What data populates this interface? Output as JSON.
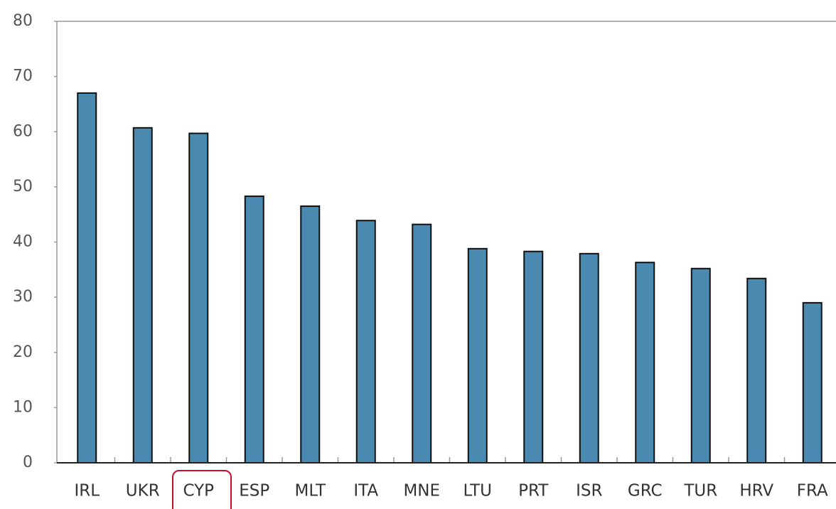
{
  "chart_data": {
    "type": "bar",
    "categories": [
      "IRL",
      "UKR",
      "CYP",
      "ESP",
      "MLT",
      "ITA",
      "MNE",
      "LTU",
      "PRT",
      "ISR",
      "GRC",
      "TUR",
      "HRV",
      "FRA"
    ],
    "values": [
      67.0,
      60.7,
      59.7,
      48.3,
      46.5,
      43.9,
      43.2,
      38.8,
      38.3,
      37.9,
      36.3,
      35.2,
      33.4,
      29.0
    ],
    "color": "#4a8ab0",
    "ylim": [
      0,
      80
    ],
    "yticks": [
      0,
      10,
      20,
      30,
      40,
      50,
      60,
      70,
      80
    ]
  }
}
